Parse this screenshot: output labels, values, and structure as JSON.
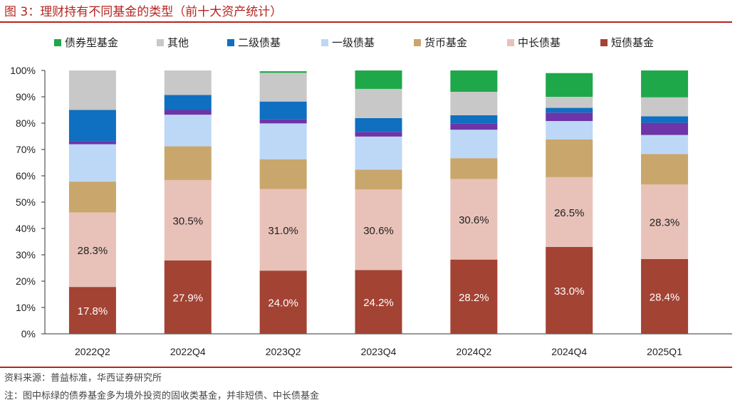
{
  "figure_title": "图 3：理财持有不同基金的类型（前十大资产统计）",
  "source_note": "资料来源：普益标准，华西证券研究所",
  "remark_note": "注：图中标绿的债券基金多为境外投资的固收类基金，并非短债、中长债基金",
  "colors": {
    "accent_red": "#b5241f",
    "债券型基金": "#1ea84a",
    "其他": "#c8c8c8",
    "二级债基": "#0f6fc0",
    "一级债基": "#bdd8f6",
    "货币基金": "#c9a66b",
    "中长债基": "#e8c2b9",
    "短债基金": "#a34334",
    "unclassified": "#6d35a8"
  },
  "chart_data": {
    "type": "bar",
    "stacked": true,
    "categories": [
      "2022Q2",
      "2022Q4",
      "2023Q2",
      "2023Q4",
      "2024Q2",
      "2024Q4",
      "2025Q1"
    ],
    "ylim": [
      0,
      100
    ],
    "y_ticks": [
      "0%",
      "10%",
      "20%",
      "30%",
      "40%",
      "50%",
      "60%",
      "70%",
      "80%",
      "90%",
      "100%"
    ],
    "legend_position": "top",
    "grid": false,
    "series": [
      {
        "name": "短债基金",
        "values": [
          17.8,
          27.9,
          24.0,
          24.2,
          28.2,
          33.0,
          28.4
        ],
        "labels": [
          "17.8%",
          "27.9%",
          "24.0%",
          "24.2%",
          "28.2%",
          "33.0%",
          "28.4%"
        ]
      },
      {
        "name": "中长债基",
        "values": [
          28.3,
          30.5,
          31.0,
          30.6,
          30.6,
          26.5,
          28.3
        ],
        "labels": [
          "28.3%",
          "30.5%",
          "31.0%",
          "30.6%",
          "30.6%",
          "26.5%",
          "28.3%"
        ]
      },
      {
        "name": "货币基金",
        "values": [
          11.7,
          12.8,
          11.3,
          7.5,
          7.9,
          14.3,
          11.6
        ]
      },
      {
        "name": "一级债基",
        "values": [
          14.2,
          12.0,
          13.6,
          12.6,
          10.8,
          7.0,
          7.2
        ]
      },
      {
        "name": "",
        "values": [
          1.2,
          1.8,
          1.5,
          1.8,
          2.3,
          3.2,
          4.6
        ]
      },
      {
        "name": "二级债基",
        "values": [
          11.8,
          5.7,
          6.8,
          5.2,
          3.2,
          1.8,
          2.5
        ]
      },
      {
        "name": "其他",
        "values": [
          15.0,
          9.3,
          10.9,
          11.1,
          8.9,
          4.2,
          7.2
        ]
      },
      {
        "name": "债券型基金",
        "values": [
          0.0,
          0.0,
          0.6,
          7.0,
          8.1,
          9.0,
          10.2
        ]
      }
    ]
  }
}
